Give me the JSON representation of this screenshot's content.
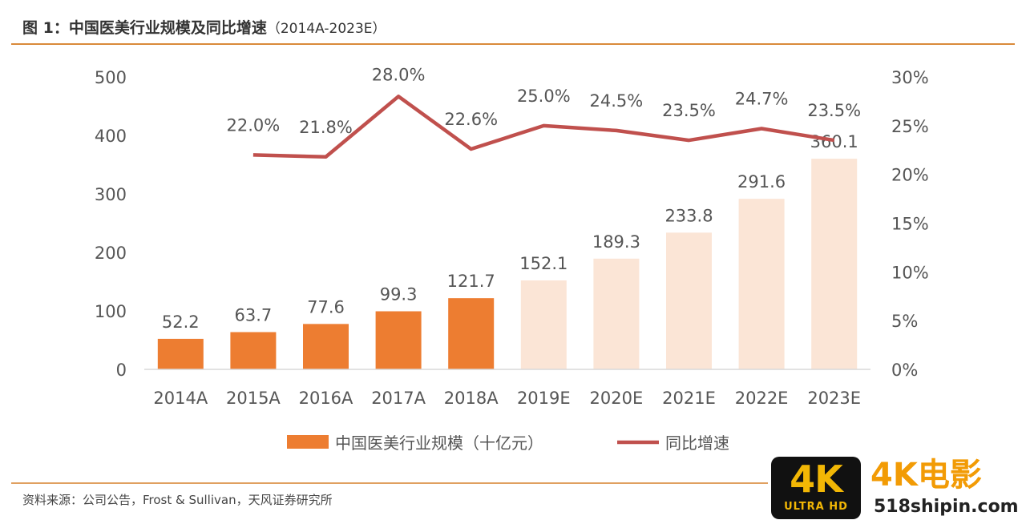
{
  "figure": {
    "title": "图 1：中国医美行业规模及同比增速",
    "title_range": "（2014A-2023E）",
    "source": "资料来源：公司公告，Frost & Sullivan，天风证券研究所"
  },
  "chart_data": {
    "type": "bar",
    "categories": [
      "2014A",
      "2015A",
      "2016A",
      "2017A",
      "2018A",
      "2019E",
      "2020E",
      "2021E",
      "2022E",
      "2023E"
    ],
    "series": [
      {
        "name": "中国医美行业规模（十亿元）",
        "type": "bar",
        "axis": "left",
        "values": [
          52.2,
          63.7,
          77.6,
          99.3,
          121.7,
          152.1,
          189.3,
          233.8,
          291.6,
          360.1
        ],
        "labels": [
          "52.2",
          "63.7",
          "77.6",
          "99.3",
          "121.7",
          "152.1",
          "189.3",
          "233.8",
          "291.6",
          "360.1"
        ],
        "color_actual": "#ed7d31",
        "color_estimate": "#fbe5d6"
      },
      {
        "name": "同比增速",
        "type": "line",
        "axis": "right",
        "values": [
          null,
          22.0,
          21.8,
          28.0,
          22.6,
          25.0,
          24.5,
          23.5,
          24.7,
          23.5
        ],
        "labels": [
          "",
          "22.0%",
          "21.8%",
          "28.0%",
          "22.6%",
          "25.0%",
          "24.5%",
          "23.5%",
          "24.7%",
          "23.5%"
        ],
        "color": "#c0504d"
      }
    ],
    "estimate_from_index": 5,
    "y_left": {
      "range": [
        0,
        500
      ],
      "ticks": [
        "0",
        "100",
        "200",
        "300",
        "400",
        "500"
      ]
    },
    "y_right": {
      "range": [
        0,
        30
      ],
      "ticks": [
        "0%",
        "5%",
        "10%",
        "15%",
        "20%",
        "25%",
        "30%"
      ]
    },
    "grid": false,
    "legend_position": "bottom"
  },
  "watermark": {
    "badge_text": "4K",
    "badge_subtext": "ULTRA HD",
    "brand": "4K电影",
    "site": "518shipin.com"
  }
}
